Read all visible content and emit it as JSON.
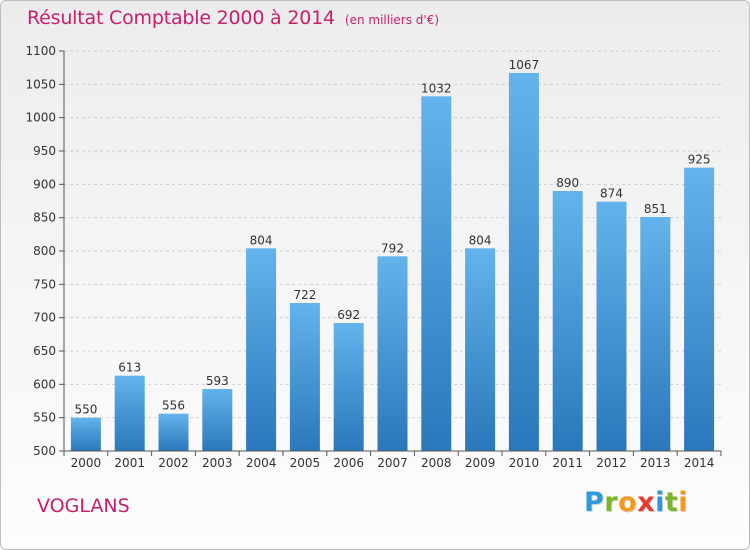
{
  "header": {
    "title": "Résultat Comptable 2000 à 2014",
    "unit": "(en milliers d'€)"
  },
  "commune": "VOGLANS",
  "logo": {
    "letters": [
      "P",
      "r",
      "o",
      "x",
      "i",
      "t",
      "i"
    ],
    "colors": [
      "#2e9ad8",
      "#7ab52b",
      "#f39a1e",
      "#e33b2e",
      "#2e9ad8",
      "#7ab52b",
      "#f39a1e"
    ]
  },
  "colors": {
    "bar_top": "#63b3ec",
    "bar_bottom": "#2a78bb",
    "title": "#c81e6e"
  },
  "chart_data": {
    "type": "bar",
    "categories": [
      "2000",
      "2001",
      "2002",
      "2003",
      "2004",
      "2005",
      "2006",
      "2007",
      "2008",
      "2009",
      "2010",
      "2011",
      "2012",
      "2013",
      "2014"
    ],
    "values": [
      550,
      613,
      556,
      593,
      804,
      722,
      692,
      792,
      1032,
      804,
      1067,
      890,
      874,
      851,
      925
    ],
    "ylim": [
      500,
      1100
    ],
    "yticks": [
      500,
      550,
      600,
      650,
      700,
      750,
      800,
      850,
      900,
      950,
      1000,
      1050,
      1100
    ],
    "grid": true,
    "title": "Résultat Comptable 2000 à 2014",
    "xlabel": "",
    "ylabel": ""
  }
}
